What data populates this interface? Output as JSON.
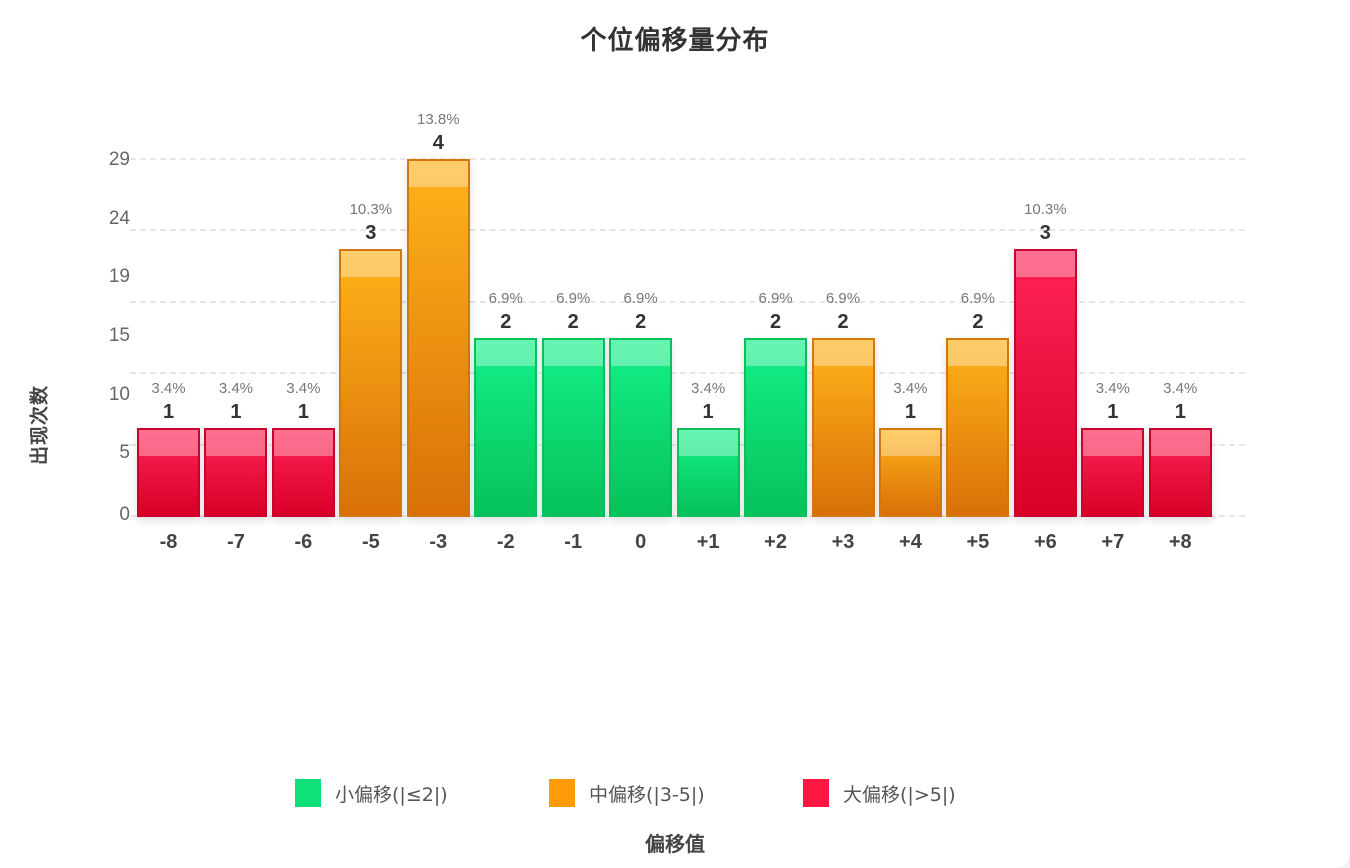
{
  "chart_data": {
    "type": "bar",
    "title": "个位偏移量分布",
    "xlabel": "偏移值",
    "ylabel": "出现次数",
    "categories": [
      "-8",
      "-7",
      "-6",
      "-5",
      "-3",
      "-2",
      "-1",
      "0",
      "+1",
      "+2",
      "+3",
      "+4",
      "+5",
      "+6",
      "+7",
      "+8"
    ],
    "values": [
      1,
      1,
      1,
      3,
      4,
      2,
      2,
      2,
      1,
      2,
      2,
      1,
      2,
      3,
      1,
      1
    ],
    "percent_labels": [
      "3.4%",
      "3.4%",
      "3.4%",
      "10.3%",
      "13.8%",
      "6.9%",
      "6.9%",
      "6.9%",
      "3.4%",
      "6.9%",
      "6.9%",
      "3.4%",
      "6.9%",
      "10.3%",
      "3.4%",
      "3.4%"
    ],
    "value_labels": [
      "1",
      "1",
      "1",
      "3",
      "4",
      "2",
      "2",
      "2",
      "1",
      "2",
      "2",
      "1",
      "2",
      "3",
      "1",
      "1"
    ],
    "groups": [
      "large",
      "large",
      "large",
      "medium",
      "medium",
      "small",
      "small",
      "small",
      "small",
      "small",
      "medium",
      "medium",
      "medium",
      "large",
      "large",
      "large"
    ],
    "y_tick_labels": [
      "0",
      "5",
      "10",
      "15",
      "19",
      "24",
      "29"
    ],
    "ylim": [
      0,
      4
    ],
    "grid": true,
    "legend_position": "bottom",
    "legend": [
      {
        "key": "small",
        "label": "小偏移(|≤2|)",
        "color": "#10e07a"
      },
      {
        "key": "medium",
        "label": "中偏移(|3-5|)",
        "color": "#ff9a0a"
      },
      {
        "key": "large",
        "label": "大偏移(|>5|)",
        "color": "#ff1744"
      }
    ]
  }
}
